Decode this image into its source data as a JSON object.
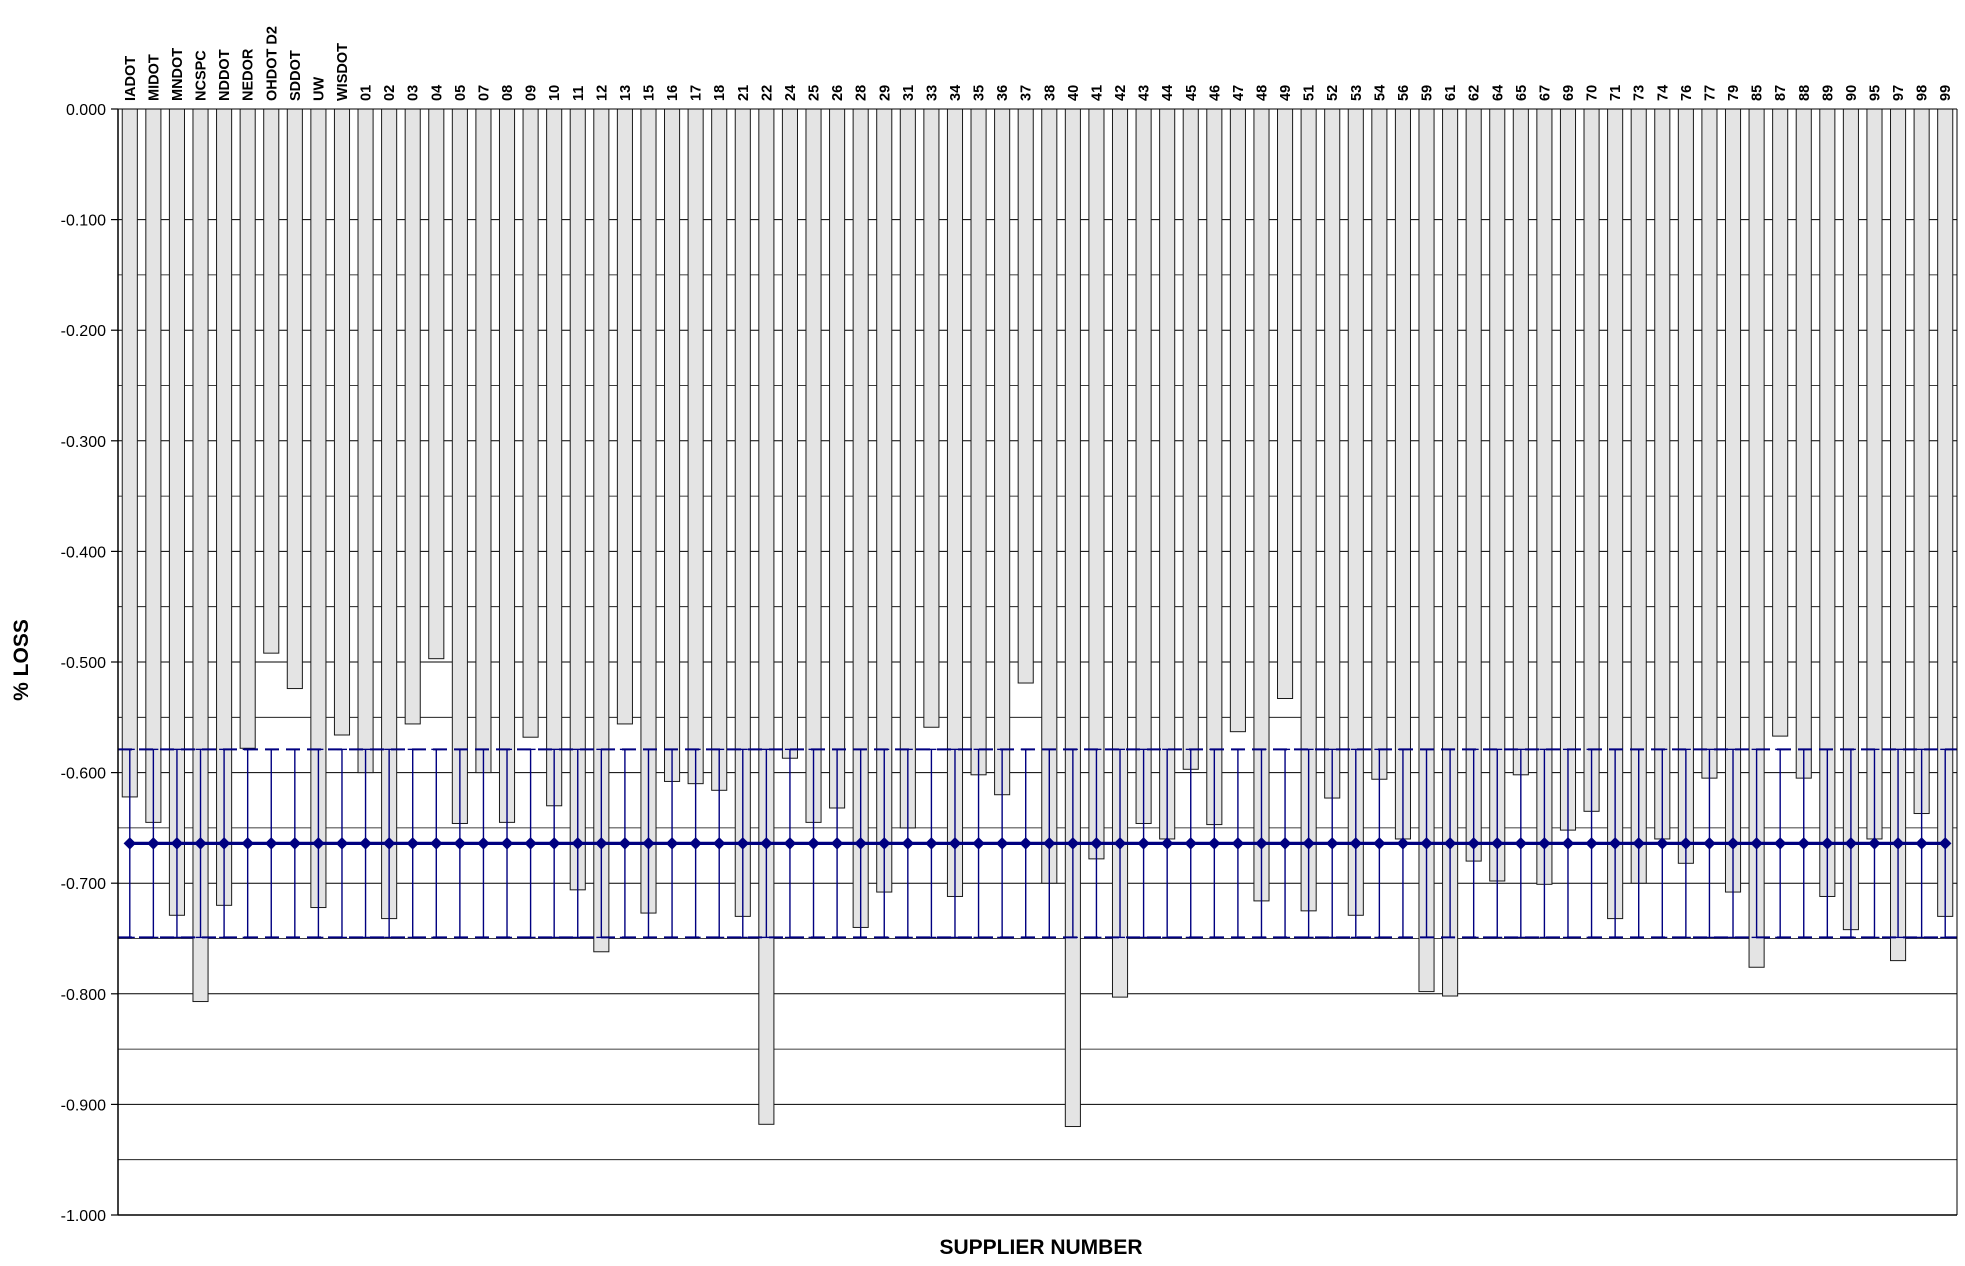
{
  "chart_data": {
    "type": "bar",
    "title": "",
    "xlabel": "SUPPLIER NUMBER",
    "ylabel": "% LOSS",
    "ylim": [
      -1.0,
      0.0
    ],
    "y_ticks": [
      0,
      -0.1,
      -0.2,
      -0.3,
      -0.4,
      -0.5,
      -0.6,
      -0.7,
      -0.8,
      -0.9,
      -1.0
    ],
    "y_tick_labels": [
      "0.000",
      "-0.100",
      "-0.200",
      "-0.300",
      "-0.400",
      "-0.500",
      "-0.600",
      "-0.700",
      "-0.800",
      "-0.900",
      "-1.000"
    ],
    "minor_gridlines": [
      -0.15,
      -0.25,
      -0.35,
      -0.45,
      -0.55,
      -0.65,
      -0.75,
      -0.85,
      -0.95
    ],
    "grid": true,
    "legend": "none",
    "categories": [
      "IADOT",
      "MIDOT",
      "MNDOT",
      "NCSPC",
      "NDDOT",
      "NEDOR",
      "OHDOT D2",
      "SDDOT",
      "UW",
      "WISDOT",
      "01",
      "02",
      "03",
      "04",
      "05",
      "07",
      "08",
      "09",
      "10",
      "11",
      "12",
      "13",
      "15",
      "16",
      "17",
      "18",
      "21",
      "22",
      "24",
      "25",
      "26",
      "28",
      "29",
      "31",
      "33",
      "34",
      "35",
      "36",
      "37",
      "38",
      "40",
      "41",
      "42",
      "43",
      "44",
      "45",
      "46",
      "47",
      "48",
      "49",
      "51",
      "52",
      "53",
      "54",
      "56",
      "59",
      "61",
      "62",
      "64",
      "65",
      "67",
      "69",
      "70",
      "71",
      "73",
      "74",
      "76",
      "77",
      "79",
      "85",
      "87",
      "88",
      "89",
      "90",
      "95",
      "97",
      "98",
      "99"
    ],
    "values": [
      -0.622,
      -0.645,
      -0.729,
      -0.807,
      -0.72,
      -0.578,
      -0.492,
      -0.524,
      -0.722,
      -0.566,
      -0.6,
      -0.732,
      -0.556,
      -0.497,
      -0.646,
      -0.6,
      -0.645,
      -0.568,
      -0.63,
      -0.706,
      -0.762,
      -0.556,
      -0.727,
      -0.608,
      -0.61,
      -0.616,
      -0.73,
      -0.918,
      -0.587,
      -0.645,
      -0.632,
      -0.74,
      -0.708,
      -0.65,
      -0.559,
      -0.712,
      -0.602,
      -0.62,
      -0.519,
      -0.7,
      -0.92,
      -0.678,
      -0.803,
      -0.646,
      -0.66,
      -0.597,
      -0.647,
      -0.563,
      -0.716,
      -0.533,
      -0.725,
      -0.623,
      -0.729,
      -0.606,
      -0.66,
      -0.798,
      -0.802,
      -0.68,
      -0.698,
      -0.602,
      -0.701,
      -0.652,
      -0.635,
      -0.732,
      -0.7,
      -0.66,
      -0.682,
      -0.605,
      -0.708,
      -0.776,
      -0.567,
      -0.605,
      -0.712,
      -0.742,
      -0.66,
      -0.77,
      -0.637,
      -0.73
    ],
    "series": [
      {
        "type": "line",
        "value": -0.664,
        "marker": "diamond",
        "color": "#000080"
      },
      {
        "type": "limit",
        "dashed_lines": [
          -0.579,
          -0.749
        ],
        "color": "#000080"
      }
    ],
    "colors": {
      "bar_fill": "#e4e4e4",
      "bar_stroke": "#1a1a1a",
      "mean_line": "#000080",
      "grid": "#000000"
    }
  }
}
